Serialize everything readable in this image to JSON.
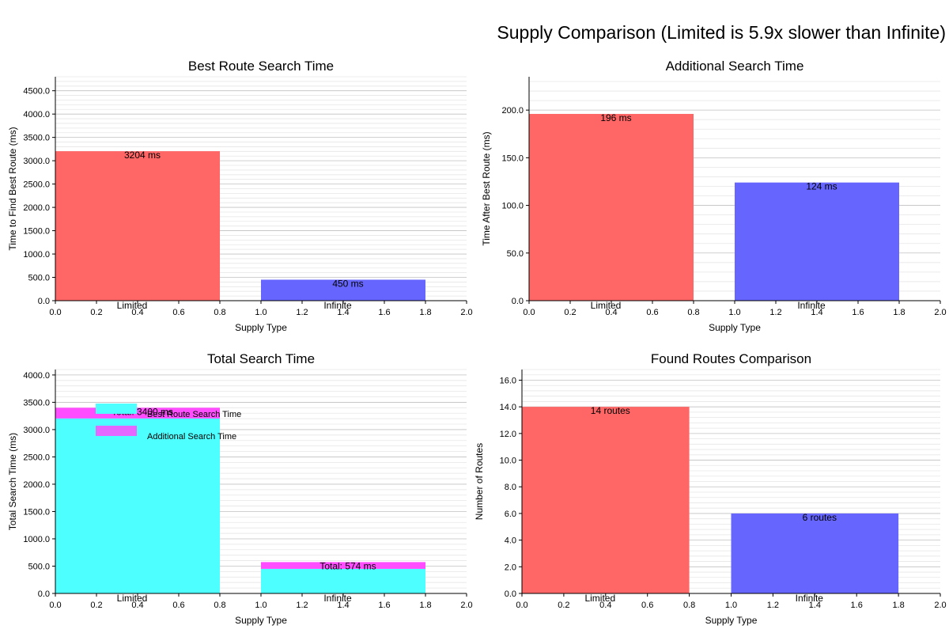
{
  "figure_title": "Supply Comparison (Limited is 5.9x slower than Infinite)",
  "colors": {
    "limited": "#ff6666",
    "infinite": "#6666ff",
    "best_route": "#4dffff",
    "additional": "#ff4dff",
    "grid_major": "#c0c0c0",
    "grid_minor": "#e6e6e6"
  },
  "chart_data": [
    {
      "type": "bar",
      "title": "Best Route Search Time",
      "xlabel": "Supply Type",
      "ylabel": "Time to Find Best Route (ms)",
      "xlim": [
        0,
        2
      ],
      "ylim": [
        0,
        4800
      ],
      "yticks": [
        0,
        500,
        1000,
        1500,
        2000,
        2500,
        3000,
        3500,
        4000,
        4500
      ],
      "xticks": [
        0.0,
        0.2,
        0.4,
        0.6,
        0.8,
        1.0,
        1.2,
        1.4,
        1.6,
        1.8,
        2.0
      ],
      "categories": [
        "Limited",
        "Infinite"
      ],
      "bar_ranges": [
        [
          0,
          0.8
        ],
        [
          1.0,
          1.8
        ]
      ],
      "values": [
        3204,
        450
      ],
      "bar_colors": [
        "#ff6666",
        "#6666ff"
      ],
      "labels": [
        "3204 ms",
        "450 ms"
      ],
      "grid": true
    },
    {
      "type": "bar",
      "title": "Additional Search Time",
      "xlabel": "Supply Type",
      "ylabel": "Time After Best Route (ms)",
      "xlim": [
        0,
        2
      ],
      "ylim": [
        0,
        235
      ],
      "yticks": [
        0,
        50,
        100,
        150,
        200
      ],
      "xticks": [
        0.0,
        0.2,
        0.4,
        0.6,
        0.8,
        1.0,
        1.2,
        1.4,
        1.6,
        1.8,
        2.0
      ],
      "categories": [
        "Limited",
        "Infinite"
      ],
      "bar_ranges": [
        [
          0,
          0.8
        ],
        [
          1.0,
          1.8
        ]
      ],
      "values": [
        196,
        124
      ],
      "bar_colors": [
        "#ff6666",
        "#6666ff"
      ],
      "labels": [
        "196 ms",
        "124 ms"
      ],
      "grid": true
    },
    {
      "type": "stacked_bar",
      "title": "Total Search Time",
      "xlabel": "Supply Type",
      "ylabel": "Total Search Time (ms)",
      "xlim": [
        0,
        2
      ],
      "ylim": [
        0,
        4100
      ],
      "yticks": [
        0,
        500,
        1000,
        1500,
        2000,
        2500,
        3000,
        3500,
        4000
      ],
      "xticks": [
        0.0,
        0.2,
        0.4,
        0.6,
        0.8,
        1.0,
        1.2,
        1.4,
        1.6,
        1.8,
        2.0
      ],
      "categories": [
        "Limited",
        "Infinite"
      ],
      "bar_ranges": [
        [
          0,
          0.8
        ],
        [
          1.0,
          1.8
        ]
      ],
      "series": [
        {
          "name": "Best Route Search Time",
          "values": [
            3204,
            450
          ],
          "color": "#4dffff"
        },
        {
          "name": "Additional Search Time",
          "values": [
            196,
            124
          ],
          "color": "#ff4dff"
        }
      ],
      "labels": [
        "Total: 3400 ms",
        "Total: 574 ms"
      ],
      "legend": "top-left",
      "grid": true
    },
    {
      "type": "bar",
      "title": "Found Routes Comparison",
      "xlabel": "Supply Type",
      "ylabel": "Number of Routes",
      "xlim": [
        0,
        2
      ],
      "ylim": [
        0,
        16.8
      ],
      "yticks": [
        0,
        2,
        4,
        6,
        8,
        10,
        12,
        14,
        16
      ],
      "xticks": [
        0.0,
        0.2,
        0.4,
        0.6,
        0.8,
        1.0,
        1.2,
        1.4,
        1.6,
        1.8,
        2.0
      ],
      "categories": [
        "Limited",
        "Infinite"
      ],
      "bar_ranges": [
        [
          0,
          0.8
        ],
        [
          1.0,
          1.8
        ]
      ],
      "values": [
        14,
        6
      ],
      "bar_colors": [
        "#ff6666",
        "#6666ff"
      ],
      "labels": [
        "14 routes",
        "6 routes"
      ],
      "grid": true
    }
  ]
}
